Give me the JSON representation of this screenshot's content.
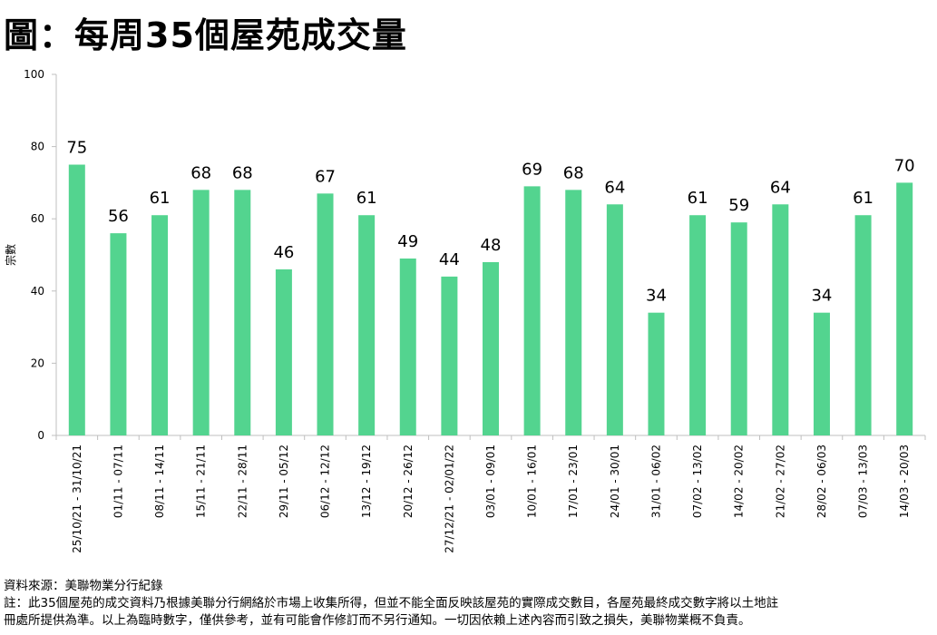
{
  "title": "圖：每周35個屋苑成交量",
  "footer": {
    "source": "資料來源：美聯物業分行紀錄",
    "note_line1": "註：此35個屋苑的成交資料乃根據美聯分行網絡於市場上收集所得，但並不能全面反映該屋苑的實際成交數目，各屋苑最終成交數字將以土地註",
    "note_line2": "冊處所提供為準。以上為臨時數字，僅供參考，並有可能會作修訂而不另行通知。一切因依賴上述內容而引致之損失，美聯物業概不負責。"
  },
  "colors": {
    "bar": "#53d48f",
    "axis": "#bfbfbf"
  },
  "chart_data": {
    "type": "bar",
    "title": "",
    "xlabel": "",
    "ylabel": "宗數",
    "ylim": [
      0,
      100
    ],
    "yticks": [
      0,
      20,
      40,
      60,
      80,
      100
    ],
    "grid": false,
    "categories": [
      "25/10/21 - 31/10/21",
      "01/11 - 07/11",
      "08/11 - 14/11",
      "15/11 - 21/11",
      "22/11 - 28/11",
      "29/11 - 05/12",
      "06/12 - 12/12",
      "13/12 - 19/12",
      "20/12 - 26/12",
      "27/12/21 - 02/01/22",
      "03/01 - 09/01",
      "10/01 - 16/01",
      "17/01 - 23/01",
      "24/01 - 30/01",
      "31/01 - 06/02",
      "07/02 - 13/02",
      "14/02 - 20/02",
      "21/02 - 27/02",
      "28/02 - 06/03",
      "07/03 - 13/03",
      "14/03 - 20/03"
    ],
    "values": [
      75,
      56,
      61,
      68,
      68,
      46,
      67,
      61,
      49,
      44,
      48,
      69,
      68,
      64,
      34,
      61,
      59,
      64,
      34,
      61,
      70
    ],
    "data_labels": true
  }
}
